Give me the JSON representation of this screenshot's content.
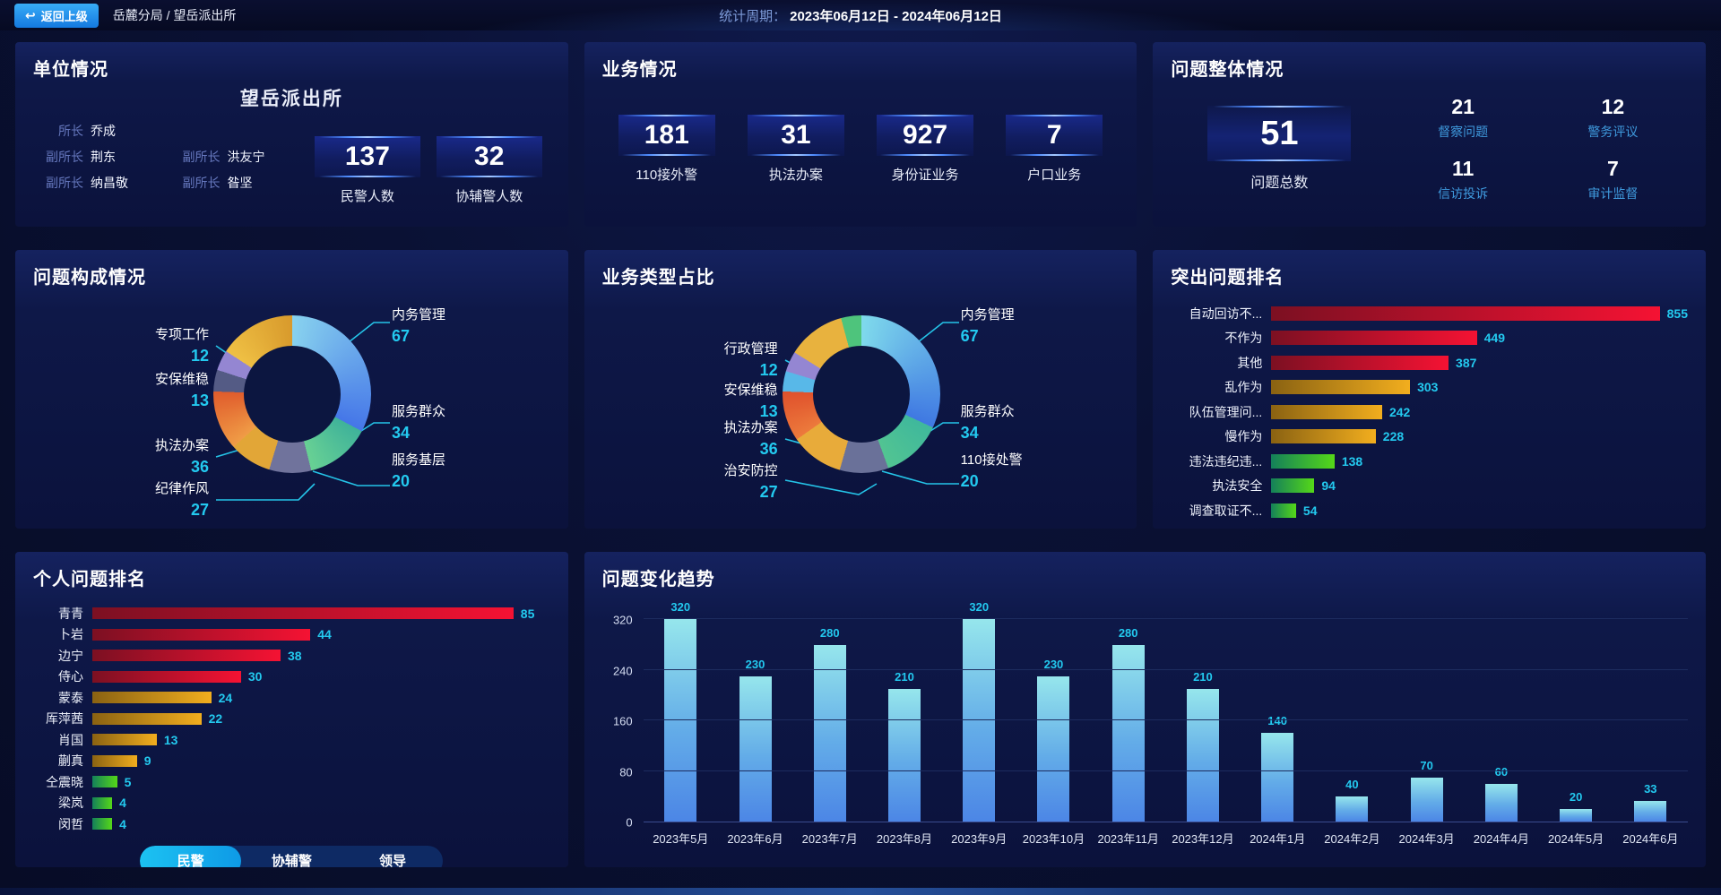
{
  "top_bar": {
    "back_button": "返回上级",
    "breadcrumb": "岳麓分局 / 望岳派出所",
    "period_label": "统计周期：",
    "period_value": "2023年06月12日 - 2024年06月12日"
  },
  "panels": {
    "unit": {
      "title": "单位情况",
      "station_name": "望岳派出所",
      "leaders": [
        {
          "role": "所长",
          "name": "乔成"
        },
        {
          "role": "副所长",
          "name": "荆东"
        },
        {
          "role": "副所长",
          "name": "洪友宁"
        },
        {
          "role": "副所长",
          "name": "纳昌敬"
        },
        {
          "role": "副所长",
          "name": "昝坚"
        }
      ],
      "stats": [
        {
          "value": "137",
          "label": "民警人数"
        },
        {
          "value": "32",
          "label": "协辅警人数"
        }
      ]
    },
    "business": {
      "title": "业务情况",
      "stats": [
        {
          "value": "181",
          "label": "110接外警"
        },
        {
          "value": "31",
          "label": "执法办案"
        },
        {
          "value": "927",
          "label": "身份证业务"
        },
        {
          "value": "7",
          "label": "户口业务"
        }
      ]
    },
    "problem_overview": {
      "title": "问题整体情况",
      "total": {
        "value": "51",
        "label": "问题总数"
      },
      "stats": [
        {
          "value": "21",
          "label": "督察问题"
        },
        {
          "value": "12",
          "label": "警务评议"
        },
        {
          "value": "11",
          "label": "信访投诉"
        },
        {
          "value": "7",
          "label": "审计监督"
        }
      ]
    },
    "problem_composition": {
      "title": "问题构成情况"
    },
    "business_type": {
      "title": "业务类型占比"
    },
    "outstanding_problems": {
      "title": "突出问题排名"
    },
    "personal_ranking": {
      "title": "个人问题排名",
      "tabs": [
        {
          "label": "民警",
          "active": true
        },
        {
          "label": "协辅警",
          "active": false
        },
        {
          "label": "领导",
          "active": false
        }
      ]
    },
    "problem_trend": {
      "title": "问题变化趋势"
    }
  },
  "colors": {
    "accent_cyan": "#23c9ef",
    "label_blue": "#3f9ade",
    "bar_red": [
      "#7c1022",
      "#f51233"
    ],
    "bar_gold": [
      "#8a6212",
      "#f2ae1e"
    ],
    "bar_green": [
      "#14805a",
      "#55d818"
    ],
    "trend_bar": [
      "#96e6ec",
      "#4c86e6"
    ]
  },
  "chart_data": [
    {
      "id": "problem_composition",
      "type": "pie",
      "donut": true,
      "title": "问题构成情况",
      "series": [
        {
          "label": "内务管理",
          "value": 67
        },
        {
          "label": "服务群众",
          "value": 34
        },
        {
          "label": "服务基层",
          "value": 20
        },
        {
          "label": "纪律作风",
          "value": 27
        },
        {
          "label": "执法办案",
          "value": 36
        },
        {
          "label": "安保维稳",
          "value": 13
        },
        {
          "label": "专项工作",
          "value": 12
        }
      ]
    },
    {
      "id": "business_type",
      "type": "pie",
      "donut": true,
      "title": "业务类型占比",
      "series": [
        {
          "label": "内务管理",
          "value": 67
        },
        {
          "label": "服务群众",
          "value": 34
        },
        {
          "label": "110接处警",
          "value": 20
        },
        {
          "label": "治安防控",
          "value": 27
        },
        {
          "label": "执法办案",
          "value": 36
        },
        {
          "label": "安保维稳",
          "value": 13
        },
        {
          "label": "行政管理",
          "value": 12
        }
      ]
    },
    {
      "id": "outstanding_problems",
      "type": "bar",
      "orientation": "horizontal",
      "title": "突出问题排名",
      "categories": [
        "自动回访不...",
        "不作为",
        "其他",
        "乱作为",
        "队伍管理问...",
        "慢作为",
        "违法违纪违...",
        "执法安全",
        "调查取证不..."
      ],
      "values": [
        855,
        449,
        387,
        303,
        242,
        228,
        138,
        94,
        54
      ],
      "bar_colors": [
        "red",
        "red",
        "red",
        "gold",
        "gold",
        "gold",
        "green",
        "green",
        "green"
      ]
    },
    {
      "id": "personal_ranking",
      "type": "bar",
      "orientation": "horizontal",
      "title": "个人问题排名",
      "categories": [
        "青青",
        "卜岩",
        "边宁",
        "侍心",
        "蒙泰",
        "厍萍茜",
        "肖国",
        "蒯真",
        "仝震晓",
        "梁岚",
        "闵哲"
      ],
      "values": [
        85,
        44,
        38,
        30,
        24,
        22,
        13,
        9,
        5,
        4,
        4
      ],
      "bar_colors": [
        "red",
        "red",
        "red",
        "red",
        "gold",
        "gold",
        "gold",
        "gold",
        "green",
        "green",
        "green"
      ]
    },
    {
      "id": "problem_trend",
      "type": "bar",
      "title": "问题变化趋势",
      "categories": [
        "2023年5月",
        "2023年6月",
        "2023年7月",
        "2023年8月",
        "2023年9月",
        "2023年10月",
        "2023年11月",
        "2023年12月",
        "2024年1月",
        "2024年2月",
        "2024年3月",
        "2024年4月",
        "2024年5月",
        "2024年6月"
      ],
      "values": [
        320,
        230,
        280,
        210,
        320,
        230,
        280,
        210,
        140,
        40,
        70,
        60,
        20,
        33
      ],
      "ylim": [
        0,
        336
      ],
      "yticks": [
        0,
        80,
        160,
        240,
        320
      ],
      "grid": true,
      "legend": false
    }
  ]
}
